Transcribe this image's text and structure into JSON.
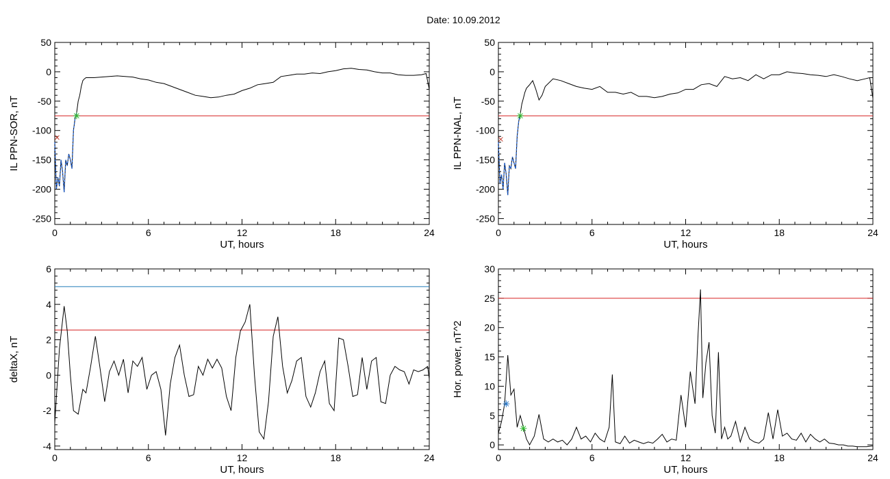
{
  "figure": {
    "title": "Date:  10.09.2012"
  },
  "colors": {
    "trace": "#000000",
    "threshold_red": "#d62020",
    "threshold_blue": "#1f7ab8",
    "highlight_blue": "#1f5fd0",
    "marker_green": "#2eb82e",
    "marker_red": "#c0392b",
    "marker_blue": "#2a78c8"
  },
  "chart_data": [
    {
      "id": "panel-ppn-sor",
      "type": "line",
      "title": "",
      "xlabel": "UT, hours",
      "ylabel": "IL PPN-SOR, nT",
      "xlim": [
        0,
        24
      ],
      "ylim": [
        -260,
        50
      ],
      "xticks": [
        0,
        6,
        12,
        18,
        24
      ],
      "yticks": [
        50,
        0,
        -50,
        -100,
        -150,
        -200,
        -250
      ],
      "grid": false,
      "series": [
        {
          "color": "black",
          "x": [
            0,
            0.1,
            0.2,
            0.3,
            0.4,
            0.5,
            0.6,
            0.7,
            0.8,
            0.9,
            1.0,
            1.1,
            1.2,
            1.3,
            1.4,
            1.5,
            1.6,
            1.7,
            1.8,
            1.9,
            2.0,
            2.5,
            3.0,
            3.5,
            4.0,
            4.5,
            5.0,
            5.5,
            6.0,
            6.5,
            7.0,
            7.5,
            8.0,
            8.5,
            9.0,
            9.5,
            10.0,
            10.5,
            11.0,
            11.5,
            12.0,
            12.5,
            13.0,
            13.5,
            14.0,
            14.5,
            15.0,
            15.5,
            16.0,
            16.5,
            17.0,
            17.5,
            18.0,
            18.5,
            19.0,
            19.5,
            20.0,
            20.5,
            21.0,
            21.5,
            22.0,
            22.5,
            23.0,
            23.5,
            23.8,
            24.0
          ],
          "y": [
            -120,
            -200,
            -180,
            -195,
            -150,
            -170,
            -205,
            -150,
            -160,
            -140,
            -150,
            -165,
            -100,
            -80,
            -70,
            -50,
            -40,
            -25,
            -15,
            -12,
            -10,
            -10,
            -9,
            -8,
            -7,
            -8,
            -9,
            -12,
            -14,
            -18,
            -20,
            -25,
            -30,
            -35,
            -40,
            -42,
            -44,
            -43,
            -40,
            -38,
            -32,
            -28,
            -22,
            -20,
            -18,
            -8,
            -6,
            -4,
            -4,
            -2,
            -3,
            0,
            2,
            5,
            6,
            4,
            3,
            0,
            -2,
            -2,
            -5,
            -6,
            -6,
            -5,
            -3,
            -30
          ]
        }
      ],
      "highlight_segment": {
        "color": "blue",
        "x": [
          0,
          0.1,
          0.2,
          0.3,
          0.4,
          0.5,
          0.6,
          0.7,
          0.8,
          0.9,
          1.0,
          1.1,
          1.2,
          1.3,
          1.4
        ],
        "y": [
          -120,
          -200,
          -180,
          -195,
          -150,
          -170,
          -205,
          -150,
          -160,
          -140,
          -150,
          -165,
          -100,
          -80,
          -70
        ]
      },
      "hlines": [
        {
          "y": -75,
          "color": "red"
        }
      ],
      "markers": [
        {
          "x": 1.4,
          "y": -75,
          "symbol": "*",
          "color": "green"
        },
        {
          "x": 0.15,
          "y": -112,
          "symbol": "x",
          "color": "red"
        }
      ]
    },
    {
      "id": "panel-ppn-nal",
      "type": "line",
      "title": "",
      "xlabel": "UT, hours",
      "ylabel": "IL PPN-NAL, nT",
      "xlim": [
        0,
        24
      ],
      "ylim": [
        -260,
        50
      ],
      "xticks": [
        0,
        6,
        12,
        18,
        24
      ],
      "yticks": [
        50,
        0,
        -50,
        -100,
        -150,
        -200,
        -250
      ],
      "grid": false,
      "series": [
        {
          "color": "black",
          "x": [
            0,
            0.1,
            0.2,
            0.3,
            0.4,
            0.5,
            0.6,
            0.7,
            0.8,
            0.9,
            1.0,
            1.1,
            1.2,
            1.3,
            1.4,
            1.5,
            1.6,
            1.7,
            1.8,
            1.9,
            2.0,
            2.2,
            2.4,
            2.6,
            2.8,
            3.0,
            3.5,
            4.0,
            4.5,
            5.0,
            5.5,
            6.0,
            6.5,
            7.0,
            7.5,
            8.0,
            8.5,
            9.0,
            9.5,
            10.0,
            10.5,
            11.0,
            11.5,
            12.0,
            12.5,
            13.0,
            13.5,
            14.0,
            14.5,
            15.0,
            15.5,
            16.0,
            16.5,
            17.0,
            17.5,
            18.0,
            18.5,
            19.0,
            19.5,
            20.0,
            20.5,
            21.0,
            21.5,
            22.0,
            22.5,
            23.0,
            23.5,
            23.8,
            24.0
          ],
          "y": [
            -120,
            -190,
            -175,
            -200,
            -155,
            -175,
            -210,
            -160,
            -165,
            -145,
            -155,
            -165,
            -110,
            -85,
            -72,
            -55,
            -45,
            -35,
            -28,
            -25,
            -22,
            -15,
            -30,
            -48,
            -40,
            -25,
            -12,
            -15,
            -20,
            -25,
            -28,
            -30,
            -25,
            -35,
            -35,
            -38,
            -35,
            -42,
            -42,
            -44,
            -42,
            -38,
            -36,
            -30,
            -30,
            -22,
            -20,
            -25,
            -8,
            -12,
            -10,
            -15,
            -5,
            -12,
            -5,
            -5,
            0,
            -2,
            -3,
            -5,
            -6,
            -8,
            -5,
            -8,
            -12,
            -15,
            -12,
            -10,
            -45
          ]
        }
      ],
      "highlight_segment": {
        "color": "blue",
        "x": [
          0,
          0.1,
          0.2,
          0.3,
          0.4,
          0.5,
          0.6,
          0.7,
          0.8,
          0.9,
          1.0,
          1.1,
          1.2,
          1.3,
          1.4
        ],
        "y": [
          -120,
          -190,
          -175,
          -200,
          -155,
          -175,
          -210,
          -160,
          -165,
          -145,
          -155,
          -165,
          -110,
          -85,
          -72
        ]
      },
      "hlines": [
        {
          "y": -75,
          "color": "red"
        }
      ],
      "markers": [
        {
          "x": 1.4,
          "y": -75,
          "symbol": "*",
          "color": "green"
        },
        {
          "x": 0.15,
          "y": -115,
          "symbol": "x",
          "color": "red"
        }
      ]
    },
    {
      "id": "panel-deltax",
      "type": "line",
      "title": "",
      "xlabel": "UT, hours",
      "ylabel": "deltaX, nT",
      "xlim": [
        0,
        24
      ],
      "ylim": [
        -4.2,
        6
      ],
      "xticks": [
        0,
        6,
        12,
        18,
        24
      ],
      "yticks": [
        6,
        4,
        2,
        0,
        -2,
        -4
      ],
      "grid": false,
      "series": [
        {
          "color": "black",
          "x": [
            0,
            0.3,
            0.6,
            0.8,
            1.0,
            1.2,
            1.5,
            1.8,
            2.0,
            2.3,
            2.6,
            2.9,
            3.2,
            3.5,
            3.8,
            4.1,
            4.4,
            4.7,
            5.0,
            5.3,
            5.6,
            5.9,
            6.2,
            6.5,
            6.8,
            7.1,
            7.4,
            7.7,
            8.0,
            8.3,
            8.6,
            8.9,
            9.2,
            9.5,
            9.8,
            10.1,
            10.4,
            10.7,
            11.0,
            11.3,
            11.6,
            11.9,
            12.2,
            12.5,
            12.8,
            13.1,
            13.4,
            13.7,
            14.0,
            14.3,
            14.6,
            14.9,
            15.2,
            15.5,
            15.8,
            16.1,
            16.4,
            16.7,
            17.0,
            17.3,
            17.6,
            17.9,
            18.2,
            18.5,
            18.8,
            19.1,
            19.4,
            19.7,
            20.0,
            20.3,
            20.6,
            20.9,
            21.2,
            21.5,
            21.8,
            22.1,
            22.4,
            22.7,
            23.0,
            23.3,
            23.6,
            23.9,
            24.0
          ],
          "y": [
            -2.7,
            1.5,
            3.9,
            2.5,
            0.0,
            -2.0,
            -2.2,
            -0.8,
            -1.0,
            0.5,
            2.2,
            0.4,
            -1.5,
            0.2,
            0.8,
            0.0,
            0.9,
            -1.0,
            0.8,
            0.5,
            1.0,
            -0.8,
            0.0,
            0.2,
            -0.8,
            -3.4,
            -0.5,
            1.0,
            1.7,
            0.0,
            -1.2,
            -1.1,
            0.5,
            0.0,
            0.9,
            0.4,
            0.9,
            0.4,
            -1.2,
            -2.0,
            1.0,
            2.5,
            3.0,
            4.0,
            0.0,
            -3.2,
            -3.6,
            -1.5,
            2.2,
            3.3,
            0.5,
            -1.0,
            -0.3,
            0.8,
            1.0,
            -1.2,
            -1.8,
            -1.0,
            0.2,
            0.8,
            -1.6,
            -2.0,
            2.1,
            2.0,
            0.5,
            -1.2,
            -1.1,
            1.0,
            -0.8,
            0.8,
            1.0,
            -1.5,
            -1.6,
            0.0,
            0.5,
            0.3,
            0.2,
            -0.5,
            0.3,
            0.2,
            0.3,
            0.5,
            -0.2
          ]
        }
      ],
      "hlines": [
        {
          "y": 5.0,
          "color": "blue"
        },
        {
          "y": 2.55,
          "color": "red"
        }
      ],
      "markers": []
    },
    {
      "id": "panel-hor-power",
      "type": "line",
      "title": "",
      "xlabel": "UT, hours",
      "ylabel": "Hor. power, nT^2",
      "xlim": [
        0,
        24
      ],
      "ylim": [
        -0.8,
        30
      ],
      "xticks": [
        0,
        6,
        12,
        18,
        24
      ],
      "yticks": [
        30,
        25,
        20,
        15,
        10,
        5,
        0
      ],
      "grid": false,
      "series": [
        {
          "color": "black",
          "x": [
            0,
            0.2,
            0.4,
            0.6,
            0.8,
            1.0,
            1.2,
            1.4,
            1.6,
            1.8,
            2.0,
            2.3,
            2.6,
            2.9,
            3.2,
            3.5,
            3.8,
            4.1,
            4.4,
            4.7,
            5.0,
            5.3,
            5.6,
            5.9,
            6.2,
            6.5,
            6.8,
            7.1,
            7.3,
            7.5,
            7.8,
            8.1,
            8.4,
            8.7,
            9.0,
            9.3,
            9.6,
            9.9,
            10.2,
            10.5,
            10.8,
            11.1,
            11.4,
            11.7,
            12.0,
            12.3,
            12.6,
            12.8,
            12.95,
            13.1,
            13.3,
            13.5,
            13.7,
            13.9,
            14.1,
            14.3,
            14.5,
            14.7,
            14.9,
            15.2,
            15.5,
            15.8,
            16.1,
            16.4,
            16.7,
            17.0,
            17.3,
            17.6,
            17.9,
            18.2,
            18.5,
            18.8,
            19.1,
            19.4,
            19.7,
            20.0,
            20.3,
            20.6,
            20.9,
            21.2,
            21.5,
            21.8,
            22.1,
            22.4,
            22.7,
            23.0,
            23.3,
            23.6,
            23.9,
            24.0
          ],
          "y": [
            2.0,
            4.0,
            7.0,
            15.3,
            8.5,
            9.5,
            3.0,
            5.0,
            3.0,
            1.0,
            0.0,
            1.5,
            5.2,
            1.0,
            0.5,
            1.0,
            0.5,
            0.8,
            0.0,
            1.0,
            3.0,
            1.0,
            1.5,
            0.5,
            2.0,
            1.0,
            0.5,
            3.0,
            12.0,
            0.5,
            0.2,
            1.5,
            0.3,
            0.8,
            0.5,
            0.2,
            0.5,
            0.3,
            1.0,
            1.8,
            0.5,
            1.0,
            0.8,
            8.5,
            3.0,
            12.5,
            7.0,
            19.0,
            26.5,
            8.0,
            14.0,
            17.5,
            5.0,
            2.0,
            15.8,
            1.0,
            3.0,
            1.0,
            1.5,
            4.0,
            0.5,
            3.0,
            1.0,
            0.5,
            0.3,
            1.0,
            5.5,
            1.0,
            6.0,
            1.5,
            2.0,
            1.0,
            0.8,
            2.0,
            0.5,
            1.8,
            1.0,
            0.5,
            1.0,
            0.3,
            0.2,
            0.0,
            0.0,
            -0.2,
            -0.2,
            -0.3,
            -0.3,
            -0.3,
            -0.2,
            -0.2
          ]
        }
      ],
      "hlines": [
        {
          "y": 25,
          "color": "red"
        }
      ],
      "markers": [
        {
          "x": 0.5,
          "y": 7.0,
          "symbol": "*",
          "color": "blue"
        },
        {
          "x": 1.6,
          "y": 2.8,
          "symbol": "*",
          "color": "green"
        }
      ]
    }
  ]
}
